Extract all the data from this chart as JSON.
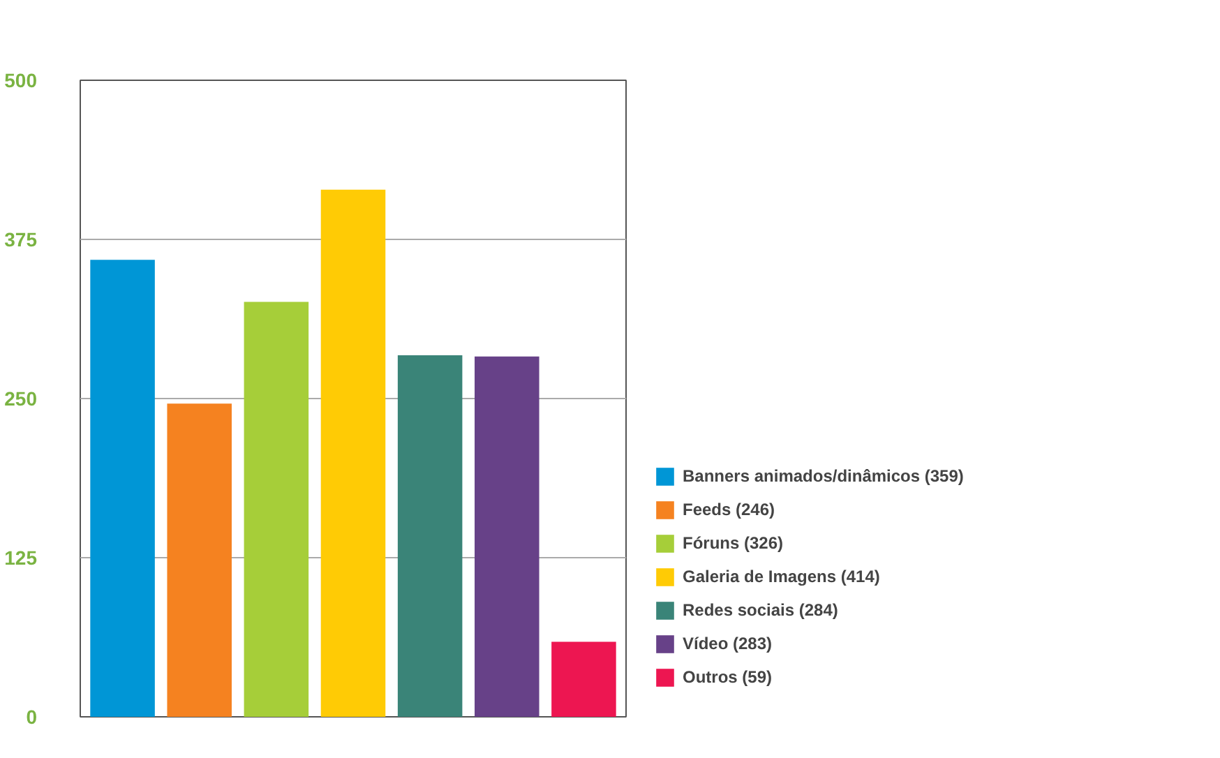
{
  "chart_data": {
    "type": "bar",
    "categories": [
      null,
      null,
      null,
      null,
      null,
      null,
      null
    ],
    "series": [
      {
        "name": "Banners animados/dinâmicos (359)",
        "color": "#0096d6",
        "values": [
          359,
          null,
          null,
          null,
          null,
          null,
          null
        ]
      },
      {
        "name": "Feeds (246)",
        "color": "#f58220",
        "values": [
          null,
          246,
          null,
          null,
          null,
          null,
          null
        ]
      },
      {
        "name": "Fóruns (326)",
        "color": "#a6ce39",
        "values": [
          null,
          null,
          326,
          null,
          null,
          null,
          null
        ]
      },
      {
        "name": "Galeria de Imagens (414)",
        "color": "#ffcb05",
        "values": [
          null,
          null,
          null,
          414,
          null,
          null,
          null
        ]
      },
      {
        "name": "Redes sociais (284)",
        "color": "#3a8478",
        "values": [
          null,
          null,
          null,
          null,
          284,
          null,
          null
        ]
      },
      {
        "name": "Vídeo (283)",
        "color": "#674188",
        "values": [
          null,
          null,
          null,
          null,
          null,
          283,
          null
        ]
      },
      {
        "name": "Outros (59)",
        "color": "#ed1651",
        "values": [
          null,
          null,
          null,
          null,
          null,
          null,
          59
        ]
      }
    ],
    "ylim": [
      0,
      500
    ],
    "yticks": [
      0,
      125,
      250,
      375,
      500
    ],
    "grid": "y",
    "legend": "bottom right"
  }
}
